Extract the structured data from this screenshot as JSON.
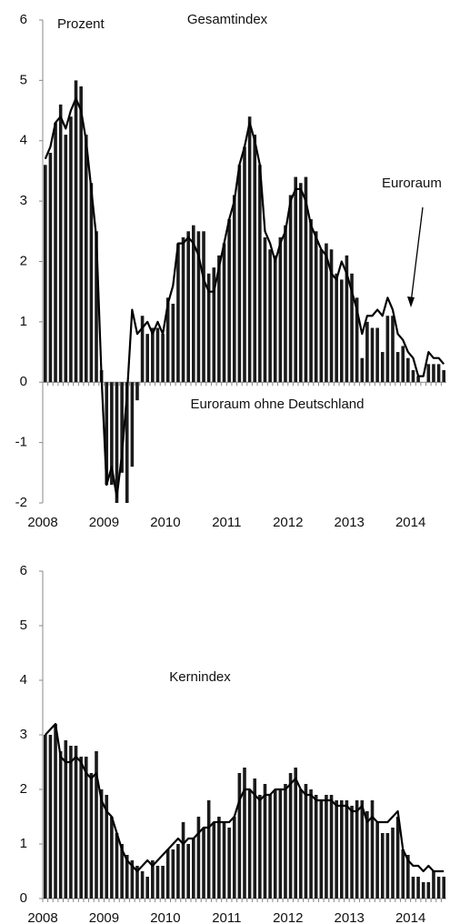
{
  "chart_data": [
    {
      "type": "bar+line",
      "title": "Gesamtindex",
      "y_label": "Prozent",
      "categories": [
        "2008",
        null,
        null,
        null,
        null,
        null,
        null,
        null,
        null,
        null,
        null,
        null,
        "2009",
        null,
        null,
        null,
        null,
        null,
        null,
        null,
        null,
        null,
        null,
        null,
        "2010",
        null,
        null,
        null,
        null,
        null,
        null,
        null,
        null,
        null,
        null,
        null,
        "2011",
        null,
        null,
        null,
        null,
        null,
        null,
        null,
        null,
        null,
        null,
        null,
        "2012",
        null,
        null,
        null,
        null,
        null,
        null,
        null,
        null,
        null,
        null,
        null,
        "2013",
        null,
        null,
        null,
        null,
        null,
        null,
        null,
        null,
        null,
        null,
        null,
        "2014",
        null,
        null,
        null,
        null,
        null,
        null
      ],
      "series": [
        {
          "name": "Euroraum ohne Deutschland",
          "kind": "bar",
          "color": "#1a1a1a",
          "values": [
            3.6,
            3.8,
            4.3,
            4.6,
            4.1,
            4.4,
            5.0,
            4.9,
            4.1,
            3.3,
            2.5,
            0.2,
            -1.7,
            -1.7,
            -2.0,
            -1.5,
            -2.0,
            -1.4,
            -0.3,
            1.1,
            0.8,
            0.9,
            0.9,
            0.8,
            1.4,
            1.3,
            2.3,
            2.4,
            2.5,
            2.6,
            2.5,
            2.5,
            1.8,
            1.9,
            2.1,
            2.3,
            2.7,
            3.1,
            3.6,
            3.9,
            4.4,
            4.1,
            3.6,
            2.4,
            2.2,
            2.1,
            2.4,
            2.6,
            3.1,
            3.4,
            3.3,
            3.4,
            2.7,
            2.5,
            2.2,
            2.3,
            2.2,
            1.8,
            1.7,
            2.1,
            1.8,
            1.4,
            0.4,
            1.0,
            0.9,
            0.9,
            0.5,
            1.1,
            1.1,
            0.5,
            0.6,
            0.4,
            0.2,
            0.1,
            0.0,
            0.3,
            0.3,
            0.3,
            0.2
          ]
        },
        {
          "name": "Euroraum",
          "kind": "line",
          "color": "#000000",
          "values": [
            3.7,
            3.9,
            4.3,
            4.4,
            4.2,
            4.5,
            4.7,
            4.5,
            4.0,
            3.2,
            2.4,
            0.1,
            -1.7,
            -1.4,
            -1.9,
            -1.2,
            -0.2,
            1.2,
            0.8,
            0.9,
            1.0,
            0.8,
            1.0,
            0.8,
            1.3,
            1.6,
            2.3,
            2.3,
            2.4,
            2.3,
            2.1,
            1.7,
            1.5,
            1.5,
            1.9,
            2.3,
            2.7,
            3.0,
            3.6,
            3.9,
            4.3,
            4.0,
            3.6,
            2.5,
            2.3,
            2.0,
            2.3,
            2.5,
            3.0,
            3.2,
            3.2,
            3.0,
            2.6,
            2.4,
            2.2,
            2.1,
            1.8,
            1.7,
            2.0,
            1.8,
            1.5,
            1.2,
            0.8,
            1.1,
            1.1,
            1.2,
            1.1,
            1.4,
            1.2,
            0.8,
            0.7,
            0.5,
            0.4,
            0.1,
            0.1,
            0.5,
            0.4,
            0.4,
            0.3
          ]
        }
      ],
      "ylim": [
        -2,
        6
      ],
      "yticks": [
        -2,
        -1,
        0,
        1,
        2,
        3,
        4,
        5,
        6
      ]
    },
    {
      "type": "bar+line",
      "title": "Kernindex",
      "categories": [
        "2008",
        null,
        null,
        null,
        null,
        null,
        null,
        null,
        null,
        null,
        null,
        null,
        "2009",
        null,
        null,
        null,
        null,
        null,
        null,
        null,
        null,
        null,
        null,
        null,
        "2010",
        null,
        null,
        null,
        null,
        null,
        null,
        null,
        null,
        null,
        null,
        null,
        "2011",
        null,
        null,
        null,
        null,
        null,
        null,
        null,
        null,
        null,
        null,
        null,
        "2012",
        null,
        null,
        null,
        null,
        null,
        null,
        null,
        null,
        null,
        null,
        null,
        "2013",
        null,
        null,
        null,
        null,
        null,
        null,
        null,
        null,
        null,
        null,
        null,
        "2014",
        null,
        null,
        null,
        null,
        null,
        null
      ],
      "series": [
        {
          "kind": "bar",
          "color": "#1a1a1a",
          "values": [
            3.0,
            3.0,
            3.2,
            2.7,
            2.9,
            2.8,
            2.8,
            2.6,
            2.6,
            2.3,
            2.7,
            2.0,
            1.9,
            1.5,
            1.2,
            1.0,
            0.8,
            0.7,
            0.6,
            0.5,
            0.4,
            0.7,
            0.6,
            0.6,
            0.9,
            0.9,
            1.0,
            1.4,
            1.0,
            1.1,
            1.5,
            1.3,
            1.8,
            1.4,
            1.5,
            1.4,
            1.3,
            1.5,
            2.3,
            2.4,
            2.0,
            2.2,
            1.9,
            2.1,
            1.9,
            2.0,
            2.0,
            2.1,
            2.3,
            2.4,
            2.0,
            2.1,
            2.0,
            1.9,
            1.8,
            1.9,
            1.9,
            1.8,
            1.8,
            1.8,
            1.7,
            1.8,
            1.8,
            1.6,
            1.8,
            1.4,
            1.2,
            1.2,
            1.3,
            1.5,
            0.9,
            0.8,
            0.4,
            0.4,
            0.3,
            0.3,
            0.5,
            0.4,
            0.4
          ]
        },
        {
          "kind": "line",
          "color": "#000000",
          "values": [
            3.0,
            3.1,
            3.2,
            2.6,
            2.5,
            2.5,
            2.6,
            2.5,
            2.3,
            2.2,
            2.3,
            1.8,
            1.6,
            1.5,
            1.2,
            0.9,
            0.7,
            0.6,
            0.5,
            0.6,
            0.7,
            0.6,
            0.7,
            0.8,
            0.9,
            1.0,
            1.1,
            1.0,
            1.1,
            1.1,
            1.2,
            1.3,
            1.3,
            1.4,
            1.4,
            1.4,
            1.4,
            1.5,
            1.8,
            2.0,
            2.0,
            1.9,
            1.8,
            1.9,
            1.9,
            2.0,
            2.0,
            2.0,
            2.1,
            2.2,
            2.0,
            1.9,
            1.9,
            1.8,
            1.8,
            1.8,
            1.8,
            1.7,
            1.7,
            1.7,
            1.6,
            1.6,
            1.7,
            1.4,
            1.5,
            1.4,
            1.4,
            1.4,
            1.5,
            1.6,
            0.9,
            0.7,
            0.6,
            0.6,
            0.5,
            0.6,
            0.5,
            0.5,
            0.5
          ]
        }
      ],
      "ylim": [
        0,
        6
      ],
      "yticks": [
        0,
        1,
        2,
        3,
        4,
        5,
        6
      ]
    }
  ]
}
